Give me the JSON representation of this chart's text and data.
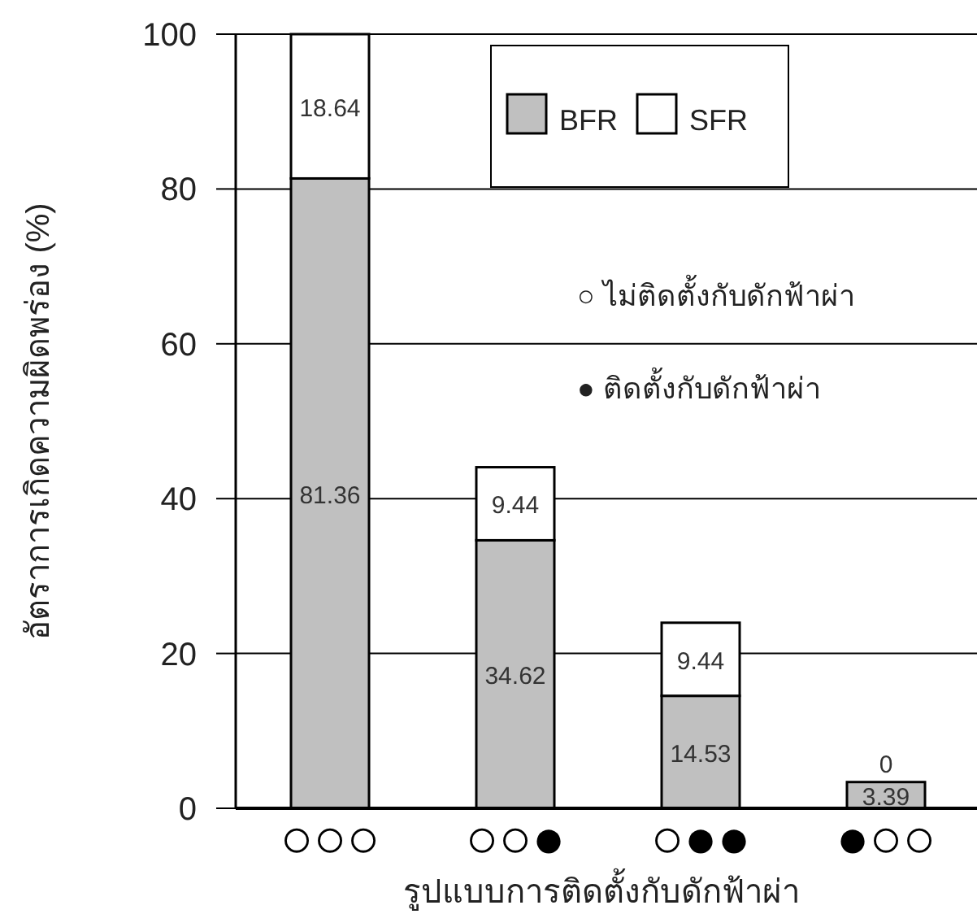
{
  "chart_data": {
    "type": "bar",
    "stacked": true,
    "ylabel": "อัตราการเกิดความผิดพร่อง (%)",
    "xlabel": "รูปแบบการติดตั้งกับดักฟ้าผ่า",
    "categories": [
      "○○○",
      "○○●",
      "○●●",
      "●○○"
    ],
    "series": [
      {
        "name": "BFR",
        "color": "#c0c0c0",
        "values": [
          81.36,
          34.62,
          14.53,
          3.39
        ]
      },
      {
        "name": "SFR",
        "color": "#ffffff",
        "values": [
          18.64,
          9.44,
          9.44,
          0
        ]
      }
    ],
    "ylim": [
      0,
      100
    ],
    "yticks": [
      0,
      20,
      40,
      60,
      80,
      100
    ],
    "grid": "y",
    "legend": "top",
    "data_labels": true,
    "annotations": [
      "○ ไม่ติดตั้งกับดักฟ้าผ่า",
      "● ติดตั้งกับดักฟ้าผ่า"
    ]
  }
}
